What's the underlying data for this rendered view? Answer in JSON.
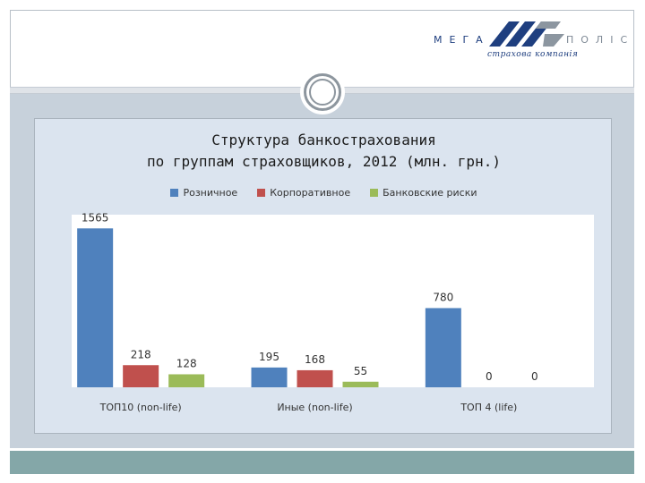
{
  "logo": {
    "left_text": "МЕГА",
    "right_text": "ПОЛІС",
    "subtitle": "страхова компанія"
  },
  "chart_data": {
    "type": "bar",
    "title_line1": "Структура банкострахования",
    "title_line2": "по группам страховщиков, 2012 (млн. грн.)",
    "categories": [
      "ТОП10 (non-life)",
      "Иные (non-life)",
      "ТОП 4 (life)"
    ],
    "series": [
      {
        "name": "Розничное",
        "color": "#4f81bd",
        "values": [
          1565,
          195,
          780
        ]
      },
      {
        "name": "Корпоративное",
        "color": "#c0504d",
        "values": [
          218,
          168,
          0
        ]
      },
      {
        "name": "Банковские риски",
        "color": "#9bbb59",
        "values": [
          128,
          55,
          0
        ]
      }
    ],
    "ylim": [
      0,
      1700
    ],
    "legend_position": "top",
    "grid": false
  }
}
